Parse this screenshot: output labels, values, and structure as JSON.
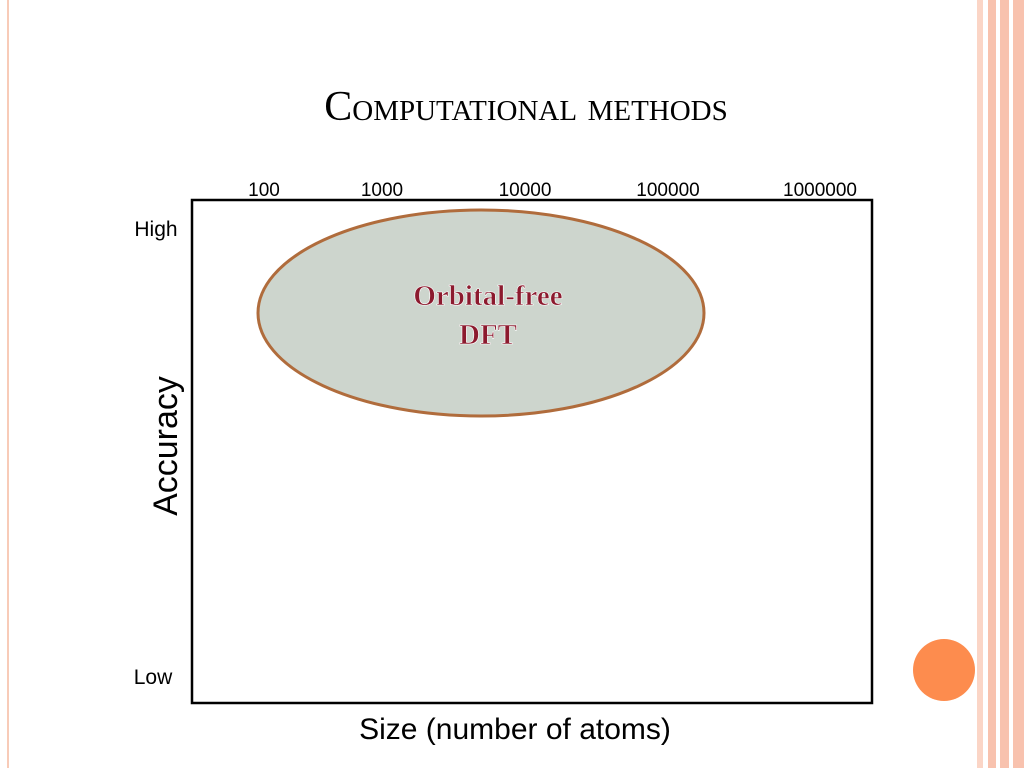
{
  "title": "Computational methods",
  "x_axis": {
    "label": "Size (number of atoms)",
    "ticks": [
      "100",
      "1000",
      "10000",
      "100000",
      "1000000"
    ]
  },
  "y_axis": {
    "label": "Accuracy",
    "high": "High",
    "low": "Low"
  },
  "region": {
    "lines": [
      "Orbital-free",
      "DFT"
    ]
  }
}
